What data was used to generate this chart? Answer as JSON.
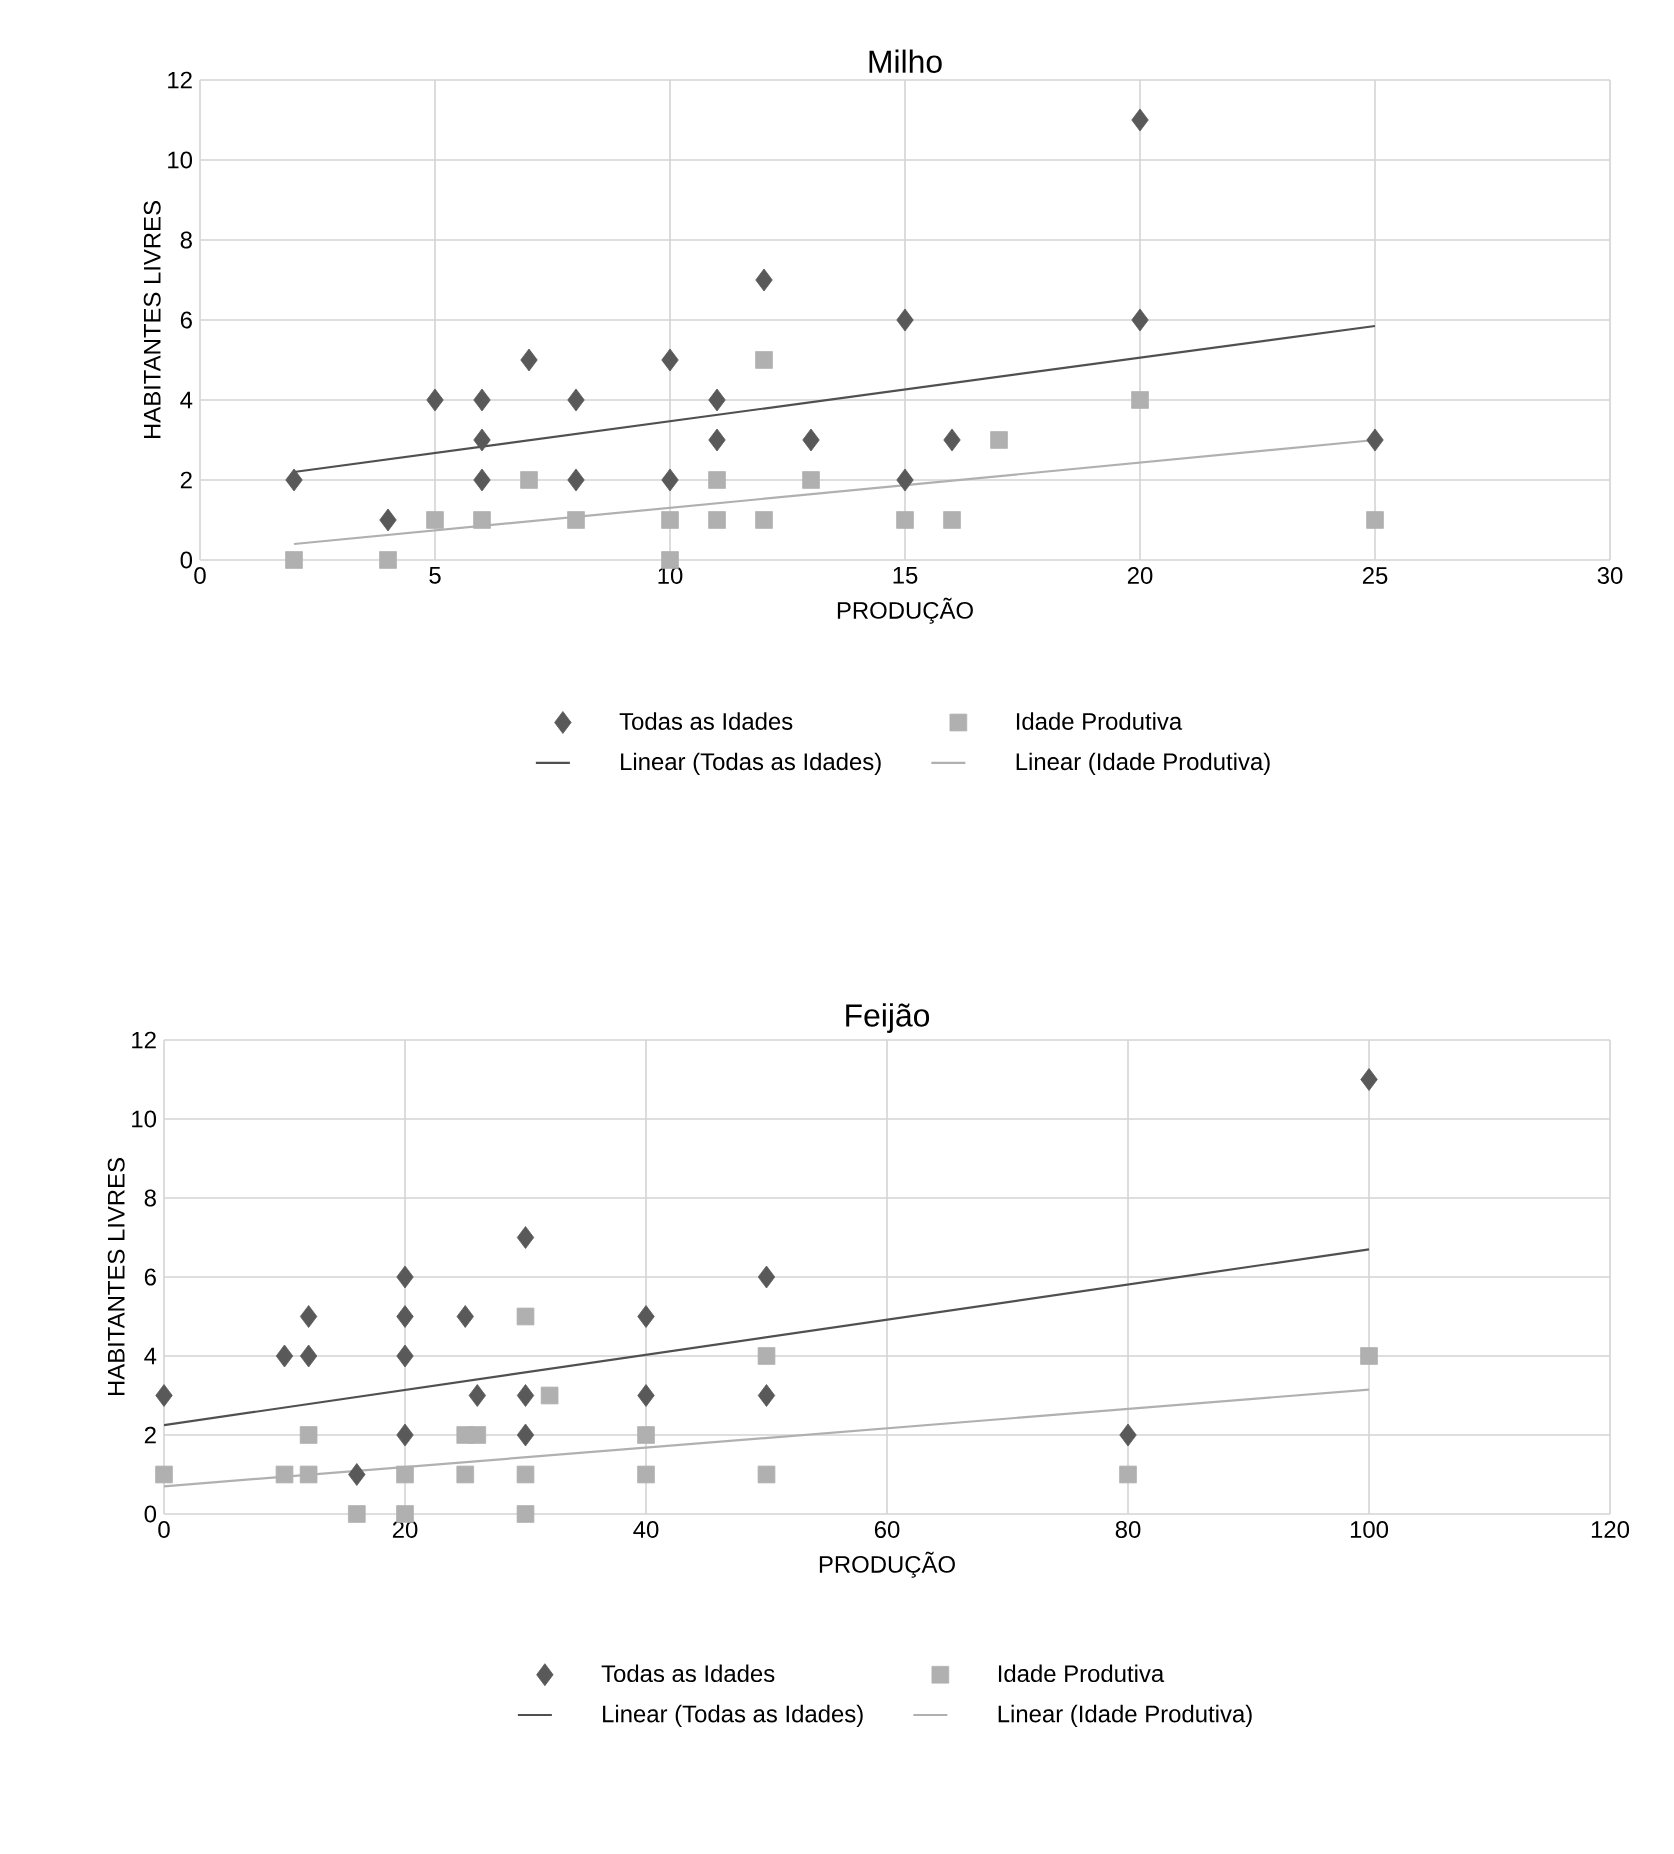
{
  "chart_data": [
    {
      "type": "scatter",
      "title": "Milho",
      "xlabel": "PRODUÇÃO",
      "ylabel": "HABITANTES LIVRES",
      "xlim": [
        0,
        30
      ],
      "xticks": [
        0,
        5,
        10,
        15,
        20,
        25,
        30
      ],
      "ylim": [
        0,
        12
      ],
      "yticks": [
        0,
        2,
        4,
        6,
        8,
        10,
        12
      ],
      "grid": true,
      "legend": "bottom",
      "series": [
        {
          "name": "Todas as Idades",
          "type": "scatter",
          "marker": "diamond",
          "color": "#595959",
          "x": [
            2,
            4,
            5,
            6,
            6,
            6,
            7,
            8,
            8,
            10,
            10,
            11,
            11,
            12,
            13,
            15,
            15,
            16,
            20,
            20,
            25
          ],
          "values": [
            2,
            1,
            4,
            4,
            3,
            2,
            5,
            4,
            2,
            5,
            2,
            4,
            3,
            7,
            3,
            6,
            2,
            3,
            11,
            6,
            3
          ]
        },
        {
          "name": "Idade Produtiva",
          "type": "scatter",
          "marker": "square",
          "color": "#b0b0b0",
          "x": [
            2,
            4,
            5,
            6,
            7,
            8,
            10,
            10,
            11,
            11,
            12,
            12,
            13,
            15,
            16,
            17,
            20,
            25
          ],
          "values": [
            0,
            0,
            1,
            1,
            2,
            1,
            1,
            0,
            2,
            1,
            5,
            1,
            2,
            1,
            1,
            3,
            4,
            1
          ]
        },
        {
          "name": "Linear (Todas as Idades)",
          "type": "line",
          "marker": "none",
          "color": "#505050",
          "x": [
            2,
            25
          ],
          "values": [
            2.2,
            5.85
          ]
        },
        {
          "name": "Linear (Idade Produtiva)",
          "type": "line",
          "marker": "none",
          "color": "#b0b0b0",
          "x": [
            2,
            25
          ],
          "values": [
            0.4,
            3.0
          ]
        }
      ]
    },
    {
      "type": "scatter",
      "title": "Feijão",
      "xlabel": "PRODUÇÃO",
      "ylabel": "HABITANTES LIVRES",
      "xlim": [
        0,
        120
      ],
      "xticks": [
        0,
        20,
        40,
        60,
        80,
        100,
        120
      ],
      "ylim": [
        0,
        12
      ],
      "yticks": [
        0,
        2,
        4,
        6,
        8,
        10,
        12
      ],
      "grid": true,
      "legend": "bottom",
      "series": [
        {
          "name": "Todas as Idades",
          "type": "scatter",
          "marker": "diamond",
          "color": "#595959",
          "x": [
            0,
            10,
            12,
            12,
            16,
            20,
            20,
            20,
            20,
            25,
            26,
            30,
            30,
            30,
            40,
            40,
            50,
            50,
            80,
            100
          ],
          "values": [
            3,
            4,
            4,
            5,
            1,
            6,
            5,
            4,
            2,
            5,
            3,
            7,
            3,
            2,
            5,
            3,
            6,
            3,
            2,
            11
          ]
        },
        {
          "name": "Idade Produtiva",
          "type": "scatter",
          "marker": "square",
          "color": "#b0b0b0",
          "x": [
            0,
            10,
            12,
            12,
            16,
            20,
            20,
            25,
            25,
            26,
            30,
            30,
            30,
            32,
            40,
            40,
            50,
            50,
            80,
            100
          ],
          "values": [
            1,
            1,
            1,
            2,
            0,
            1,
            0,
            2,
            1,
            2,
            5,
            1,
            0,
            3,
            2,
            1,
            4,
            1,
            1,
            4
          ]
        },
        {
          "name": "Linear (Todas as Idades)",
          "type": "line",
          "marker": "none",
          "color": "#505050",
          "x": [
            0,
            100
          ],
          "values": [
            2.25,
            6.7
          ]
        },
        {
          "name": "Linear (Idade Produtiva)",
          "type": "line",
          "marker": "none",
          "color": "#b0b0b0",
          "x": [
            0,
            100
          ],
          "values": [
            0.7,
            3.15
          ]
        }
      ]
    }
  ]
}
